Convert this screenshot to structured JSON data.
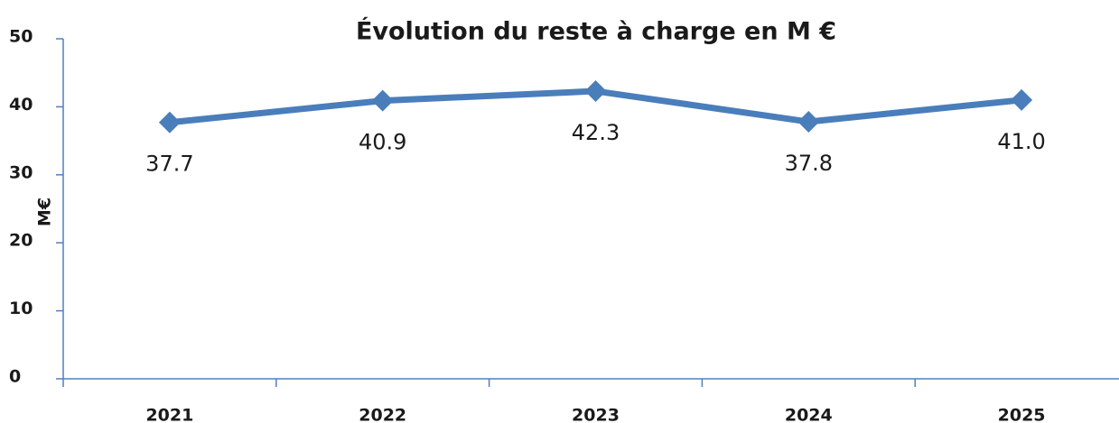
{
  "chart_data": {
    "type": "line",
    "title": "Évolution du reste à charge en M €",
    "ylabel": "M€",
    "categories": [
      "2021",
      "2022",
      "2023",
      "2024",
      "2025"
    ],
    "series": [
      {
        "name": "Reste à charge",
        "color": "#4a7ebb",
        "values": [
          37.7,
          40.9,
          42.3,
          37.8,
          41.0
        ],
        "value_labels": [
          "37.7",
          "40.9",
          "42.3",
          "37.8",
          "41.0"
        ]
      }
    ],
    "ylim": [
      0,
      50
    ],
    "yticks": [
      0,
      10,
      20,
      30,
      40,
      50
    ],
    "grid": false,
    "legend": false
  }
}
